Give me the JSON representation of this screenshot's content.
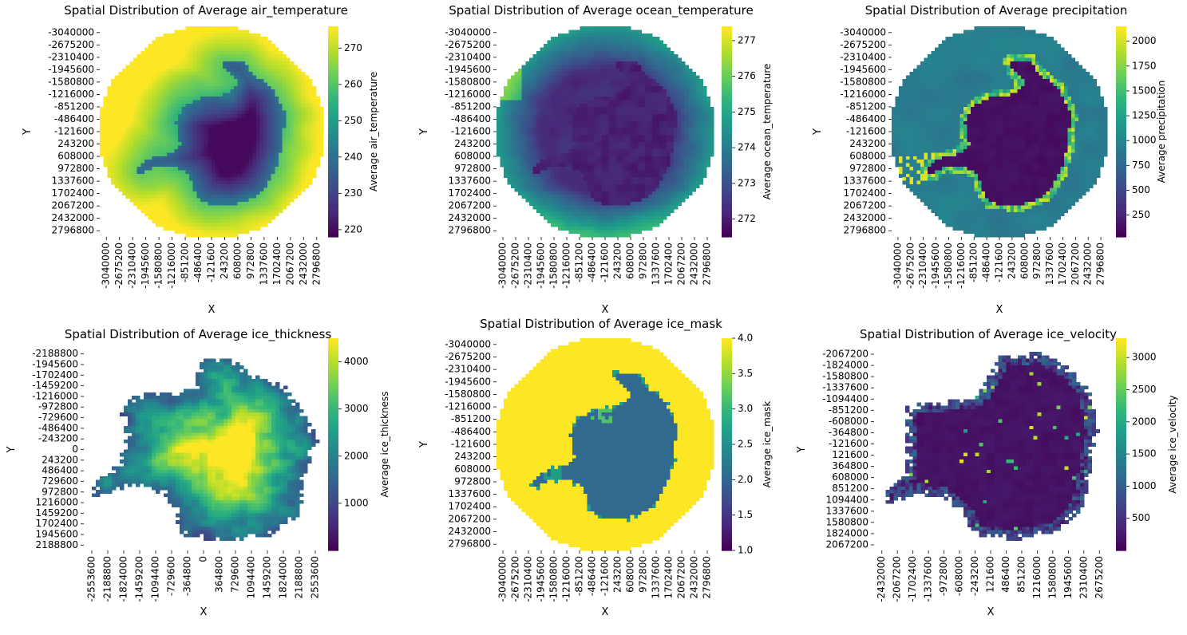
{
  "figure": {
    "colormap": "viridis",
    "colormap_stops": [
      "#440154",
      "#482878",
      "#3e4989",
      "#31688e",
      "#26828e",
      "#1f9e89",
      "#35b779",
      "#6ece58",
      "#b5de2b",
      "#fde725"
    ]
  },
  "chart_data": [
    {
      "type": "heatmap",
      "title": "Spatial Distribution of Average air_temperature",
      "xlabel": "X",
      "ylabel": "Y",
      "colorbar_label": "Average air_temperature",
      "xticks": [
        "-3040000",
        "-2675200",
        "-2310400",
        "-1945600",
        "-1580800",
        "-1216000",
        "-851200",
        "-486400",
        "-121600",
        "243200",
        "608000",
        "972800",
        "1337600",
        "1702400",
        "2067200",
        "2432000",
        "2796800"
      ],
      "yticks": [
        "-3040000",
        "-2675200",
        "-2310400",
        "-1945600",
        "-1580800",
        "-1216000",
        "-851200",
        "-486400",
        "-121600",
        "243200",
        "608000",
        "972800",
        "1337600",
        "1702400",
        "2067200",
        "2432000",
        "2796800"
      ],
      "colorbar_ticks": [
        220,
        230,
        240,
        250,
        260,
        270
      ],
      "value_range": [
        218,
        276
      ],
      "pattern": "air"
    },
    {
      "type": "heatmap",
      "title": "Spatial Distribution of Average ocean_temperature",
      "xlabel": "X",
      "ylabel": "Y",
      "colorbar_label": "Average ocean_temperature",
      "xticks": [
        "-3040000",
        "-2675200",
        "-2310400",
        "-1945600",
        "-1580800",
        "-1216000",
        "-851200",
        "-486400",
        "-121600",
        "243200",
        "608000",
        "972800",
        "1337600",
        "1702400",
        "2067200",
        "2432000",
        "2796800"
      ],
      "yticks": [
        "-3040000",
        "-2675200",
        "-2310400",
        "-1945600",
        "-1580800",
        "-1216000",
        "-851200",
        "-486400",
        "-121600",
        "243200",
        "608000",
        "972800",
        "1337600",
        "1702400",
        "2067200",
        "2432000",
        "2796800"
      ],
      "colorbar_ticks": [
        272,
        273,
        274,
        275,
        276,
        277
      ],
      "value_range": [
        271.5,
        277.4
      ],
      "pattern": "ocean"
    },
    {
      "type": "heatmap",
      "title": "Spatial Distribution of Average precipitation",
      "xlabel": "X",
      "ylabel": "Y",
      "colorbar_label": "Average precipitation",
      "xticks": [
        "-3040000",
        "-2675200",
        "-2310400",
        "-1945600",
        "-1580800",
        "-1216000",
        "-851200",
        "-486400",
        "-121600",
        "243200",
        "608000",
        "972800",
        "1337600",
        "1702400",
        "2067200",
        "2432000",
        "2796800"
      ],
      "yticks": [
        "-3040000",
        "-2675200",
        "-2310400",
        "-1945600",
        "-1580800",
        "-1216000",
        "-851200",
        "-486400",
        "-121600",
        "243200",
        "608000",
        "972800",
        "1337600",
        "1702400",
        "2067200",
        "2432000",
        "2796800"
      ],
      "colorbar_ticks": [
        250,
        500,
        750,
        1000,
        1250,
        1500,
        1750,
        2000
      ],
      "value_range": [
        30,
        2150
      ],
      "pattern": "precip"
    },
    {
      "type": "heatmap",
      "title": "Spatial Distribution of Average ice_thickness",
      "xlabel": "X",
      "ylabel": "Y",
      "colorbar_label": "Average ice_thickness",
      "xticks": [
        "-2553600",
        "-2188800",
        "-1824000",
        "-1459200",
        "-1094400",
        "-729600",
        "-364800",
        "0",
        "364800",
        "729600",
        "1094400",
        "1459200",
        "1824000",
        "2188800",
        "2553600"
      ],
      "yticks": [
        "-2188800",
        "-1945600",
        "-1702400",
        "-1459200",
        "-1216000",
        "-972800",
        "-729600",
        "-486400",
        "-243200",
        "0",
        "243200",
        "486400",
        "729600",
        "972800",
        "1216000",
        "1459200",
        "1702400",
        "1945600",
        "2188800"
      ],
      "colorbar_ticks": [
        1000,
        2000,
        3000,
        4000
      ],
      "value_range": [
        0,
        4500
      ],
      "pattern": "thick"
    },
    {
      "type": "heatmap",
      "title": "Spatial Distribution of Average ice_mask",
      "xlabel": "X",
      "ylabel": "Y",
      "colorbar_label": "Average ice_mask",
      "xticks": [
        "-3040000",
        "-2675200",
        "-2310400",
        "-1945600",
        "-1580800",
        "-1216000",
        "-851200",
        "-486400",
        "-121600",
        "243200",
        "608000",
        "972800",
        "1337600",
        "1702400",
        "2067200",
        "2432000",
        "2796800"
      ],
      "yticks": [
        "-3040000",
        "-2675200",
        "-2310400",
        "-1945600",
        "-1580800",
        "-1216000",
        "-851200",
        "-486400",
        "-121600",
        "243200",
        "608000",
        "972800",
        "1337600",
        "1702400",
        "2067200",
        "2432000",
        "2796800"
      ],
      "colorbar_ticks": [
        "1.0",
        "1.5",
        "2.0",
        "2.5",
        "3.0",
        "3.5",
        "4.0"
      ],
      "value_range": [
        1.0,
        4.0
      ],
      "pattern": "mask"
    },
    {
      "type": "heatmap",
      "title": "Spatial Distribution of Average ice_velocity",
      "xlabel": "X",
      "ylabel": "Y",
      "colorbar_label": "Average ice_velocity",
      "xticks": [
        "-2432000",
        "-2067200",
        "-1702400",
        "-1337600",
        "-972800",
        "-608000",
        "-243200",
        "121600",
        "486400",
        "851200",
        "1216000",
        "1580800",
        "1945600",
        "2310400",
        "2675200"
      ],
      "yticks": [
        "-2067200",
        "-1824000",
        "-1580800",
        "-1337600",
        "-1094400",
        "-851200",
        "-608000",
        "-364800",
        "-121600",
        "121600",
        "364800",
        "608000",
        "851200",
        "1094400",
        "1337600",
        "1580800",
        "1824000",
        "2067200"
      ],
      "colorbar_ticks": [
        500,
        1000,
        1500,
        2000,
        2500,
        3000
      ],
      "value_range": [
        0,
        3300
      ],
      "pattern": "vel"
    }
  ]
}
